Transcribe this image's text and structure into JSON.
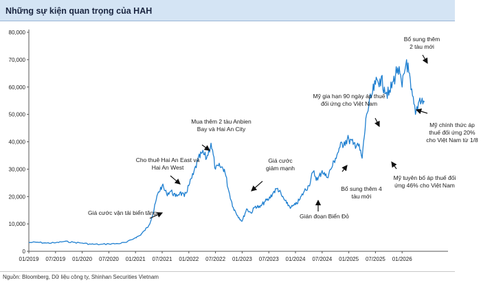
{
  "title": "Những sự kiện quan trọng của HAH",
  "source": "Nguồn: Bloomberg, Dữ liệu công ty, Shinhan Securities Vietnam",
  "colors": {
    "line": "#1e7fd0",
    "title_bg": "#d4e4f4",
    "arrow": "#111111"
  },
  "chart_data": {
    "type": "line",
    "title": "Những sự kiện quan trọng của HAH",
    "xlabel": "",
    "ylabel": "",
    "ylim": [
      0,
      80000
    ],
    "grid": false,
    "x_ticks": [
      "01/2019",
      "07/2019",
      "01/2020",
      "07/2020",
      "01/2021",
      "07/2021",
      "01/2022",
      "07/2022",
      "01/2023",
      "07/2023",
      "01/2024",
      "07/2024",
      "01/2025",
      "07/2025",
      "01/2026"
    ],
    "y_ticks": [
      "0",
      "10,000",
      "20,000",
      "30,000",
      "40,000",
      "50,000",
      "60,000",
      "70,000",
      "80,000"
    ],
    "series": [
      {
        "points": [
          [
            "2019-01",
            3200
          ],
          [
            "2019-03",
            3300
          ],
          [
            "2019-05",
            3000
          ],
          [
            "2019-07",
            3100
          ],
          [
            "2019-09",
            3600
          ],
          [
            "2019-11",
            3300
          ],
          [
            "2020-01",
            3000
          ],
          [
            "2020-03",
            2600
          ],
          [
            "2020-05",
            2500
          ],
          [
            "2020-07",
            2700
          ],
          [
            "2020-09",
            2800
          ],
          [
            "2020-11",
            3300
          ],
          [
            "2021-01",
            5000
          ],
          [
            "2021-02",
            5800
          ],
          [
            "2021-03",
            7500
          ],
          [
            "2021-04",
            9500
          ],
          [
            "2021-05",
            14000
          ],
          [
            "2021-06",
            21000
          ],
          [
            "2021-07",
            24000
          ],
          [
            "2021-08",
            21000
          ],
          [
            "2021-09",
            22000
          ],
          [
            "2021-10",
            20000
          ],
          [
            "2021-11",
            21500
          ],
          [
            "2021-12",
            20000
          ],
          [
            "2022-01",
            24000
          ],
          [
            "2022-02",
            28000
          ],
          [
            "2022-03",
            33000
          ],
          [
            "2022-04",
            36000
          ],
          [
            "2022-05",
            34000
          ],
          [
            "2022-06",
            39500
          ],
          [
            "2022-07",
            30000
          ],
          [
            "2022-08",
            31000
          ],
          [
            "2022-09",
            30000
          ],
          [
            "2022-10",
            22000
          ],
          [
            "2022-11",
            16000
          ],
          [
            "2022-12",
            13000
          ],
          [
            "2023-01",
            11000
          ],
          [
            "2023-02",
            15500
          ],
          [
            "2023-03",
            14000
          ],
          [
            "2023-04",
            16500
          ],
          [
            "2023-05",
            16000
          ],
          [
            "2023-06",
            18000
          ],
          [
            "2023-07",
            19000
          ],
          [
            "2023-08",
            21500
          ],
          [
            "2023-09",
            23000
          ],
          [
            "2023-10",
            20000
          ],
          [
            "2023-11",
            17500
          ],
          [
            "2023-12",
            16000
          ],
          [
            "2024-01",
            17000
          ],
          [
            "2024-02",
            19000
          ],
          [
            "2024-03",
            22000
          ],
          [
            "2024-04",
            24000
          ],
          [
            "2024-05",
            29000
          ],
          [
            "2024-06",
            26000
          ],
          [
            "2024-07",
            29500
          ],
          [
            "2024-08",
            27000
          ],
          [
            "2024-09",
            30000
          ],
          [
            "2024-10",
            34000
          ],
          [
            "2024-11",
            38000
          ],
          [
            "2024-12",
            40000
          ],
          [
            "2025-01",
            41000
          ],
          [
            "2025-02",
            39000
          ],
          [
            "2025-03",
            39500
          ],
          [
            "2025-04",
            34000
          ],
          [
            "2025-05",
            50000
          ],
          [
            "2025-06",
            56000
          ],
          [
            "2025-07",
            61000
          ],
          [
            "2025-08",
            63000
          ],
          [
            "2025-09",
            60000
          ],
          [
            "2025-10",
            57000
          ],
          [
            "2025-11",
            62000
          ],
          [
            "2025-12",
            67000
          ],
          [
            "2026-01",
            60000
          ],
          [
            "2026-02",
            70000
          ],
          [
            "2026-03",
            59000
          ],
          [
            "2026-04",
            50000
          ],
          [
            "2026-05",
            56000
          ],
          [
            "2026-06",
            54500
          ]
        ]
      }
    ],
    "annotations": [
      {
        "text": [
          "Giá cước vận tải biển tăng"
        ]
      },
      {
        "text": [
          "Cho thuê Hai An East và",
          "Hai An West"
        ]
      },
      {
        "text": [
          "Mua thêm 2 tàu Anbien",
          "Bay và Hai An City"
        ]
      },
      {
        "text": [
          "Giá cước",
          "giảm mạnh"
        ]
      },
      {
        "text": [
          "Gián đoạn Biển Đỏ"
        ]
      },
      {
        "text": [
          "Bổ sung thêm 4",
          "tàu mới"
        ]
      },
      {
        "text": [
          "Mỹ gia hạn 90 ngày áp thuế",
          "đối ứng cho Việt Nam"
        ]
      },
      {
        "text": [
          "Mỹ tuyên bố áp thuế đối",
          "ứng 46% cho Việt Nam"
        ]
      },
      {
        "text": [
          "Bổ sung thêm",
          "2 tàu mới"
        ]
      },
      {
        "text": [
          "Mỹ chính thức áp",
          "thuế đối ứng 20%",
          "cho Việt Nam từ 1/8"
        ]
      }
    ]
  }
}
